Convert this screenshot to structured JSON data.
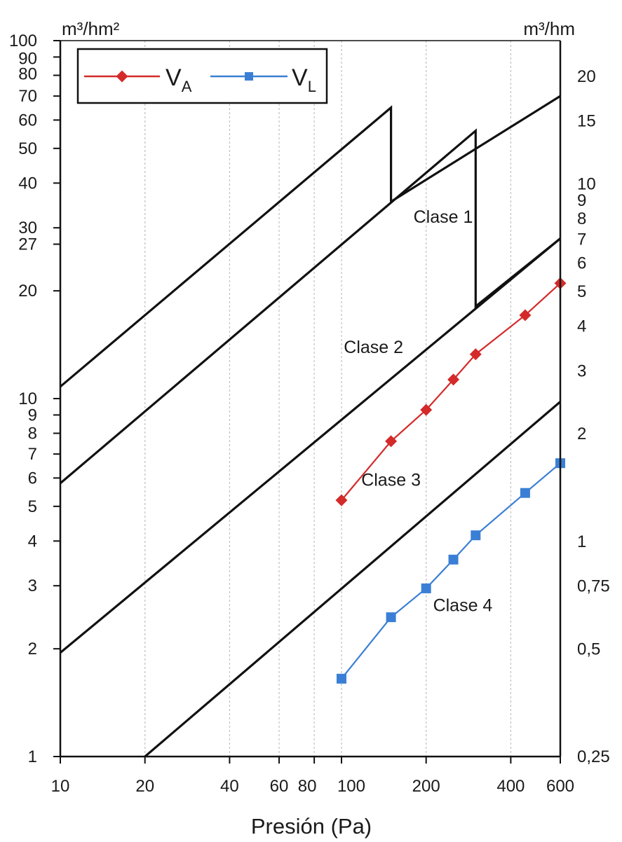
{
  "chart_data": {
    "type": "line",
    "xlabel": "Presión (Pa)",
    "x_scale": "log",
    "xlim": [
      10,
      600
    ],
    "y_left_unit": "m³/hm²",
    "y_left_scale": "log",
    "ylim_left": [
      1,
      100
    ],
    "y_right_unit": "m³/hm",
    "grid": "vertical",
    "x_ticks": [
      {
        "v": 10,
        "l": "10"
      },
      {
        "v": 20,
        "l": "20"
      },
      {
        "v": 40,
        "l": "40"
      },
      {
        "v": 60,
        "l": "60"
      },
      {
        "v": 80,
        "l": "80"
      },
      {
        "v": 100,
        "l": "100"
      },
      {
        "v": 200,
        "l": "200"
      },
      {
        "v": 400,
        "l": "400"
      },
      {
        "v": 600,
        "l": "600"
      }
    ],
    "y_left_ticks": [
      {
        "v": 1,
        "l": "1"
      },
      {
        "v": 2,
        "l": "2"
      },
      {
        "v": 3,
        "l": "3"
      },
      {
        "v": 4,
        "l": "4"
      },
      {
        "v": 5,
        "l": "5"
      },
      {
        "v": 6,
        "l": "6"
      },
      {
        "v": 7,
        "l": "7"
      },
      {
        "v": 8,
        "l": "8"
      },
      {
        "v": 9,
        "l": "9"
      },
      {
        "v": 10,
        "l": "10"
      },
      {
        "v": 20,
        "l": "20"
      },
      {
        "v": 27,
        "l": "27"
      },
      {
        "v": 30,
        "l": "30"
      },
      {
        "v": 40,
        "l": "40"
      },
      {
        "v": 50,
        "l": "50"
      },
      {
        "v": 60,
        "l": "60"
      },
      {
        "v": 70,
        "l": "70"
      },
      {
        "v": 80,
        "l": "80"
      },
      {
        "v": 90,
        "l": "90"
      },
      {
        "v": 100,
        "l": "100"
      }
    ],
    "y_right_ticks": [
      {
        "v": 0.25,
        "l": "0,25"
      },
      {
        "v": 0.5,
        "l": "0,5"
      },
      {
        "v": 0.75,
        "l": "0,75"
      },
      {
        "v": 1,
        "l": "1"
      },
      {
        "v": 2,
        "l": "2"
      },
      {
        "v": 3,
        "l": "3"
      },
      {
        "v": 4,
        "l": "4"
      },
      {
        "v": 5,
        "l": "5"
      },
      {
        "v": 6,
        "l": "6"
      },
      {
        "v": 7,
        "l": "7"
      },
      {
        "v": 8,
        "l": "8"
      },
      {
        "v": 9,
        "l": "9"
      },
      {
        "v": 10,
        "l": "10"
      },
      {
        "v": 15,
        "l": "15"
      },
      {
        "v": 20,
        "l": "20"
      }
    ],
    "class_boundaries": [
      {
        "points": [
          [
            10,
            10.8
          ],
          [
            150,
            65.0
          ],
          [
            150,
            35.5
          ],
          [
            600,
            70.0
          ]
        ]
      },
      {
        "points": [
          [
            10,
            5.8
          ],
          [
            300,
            56.0
          ],
          [
            300,
            18.1
          ],
          [
            600,
            28.0
          ]
        ]
      },
      {
        "points": [
          [
            10,
            1.95
          ],
          [
            600,
            28.0
          ]
        ]
      },
      {
        "points": [
          [
            20,
            1.0
          ],
          [
            600,
            9.8
          ]
        ]
      }
    ],
    "class_labels": [
      {
        "text": "Clase 1",
        "x": 230,
        "y": 31
      },
      {
        "text": "Clase 2",
        "x": 130,
        "y": 13.4
      },
      {
        "text": "Clase 3",
        "x": 150,
        "y": 5.7
      },
      {
        "text": "Clase 4",
        "x": 270,
        "y": 2.55
      }
    ],
    "series": [
      {
        "name": "VA",
        "color": "#d42a2a",
        "marker": "diamond",
        "x": [
          100,
          150,
          200,
          250,
          300,
          450,
          600
        ],
        "y": [
          5.2,
          7.6,
          9.3,
          11.3,
          13.3,
          17.1,
          21.0
        ]
      },
      {
        "name": "VL",
        "color": "#3a7fd5",
        "marker": "square",
        "x": [
          100,
          150,
          200,
          250,
          300,
          450,
          600
        ],
        "y": [
          1.65,
          2.45,
          2.95,
          3.55,
          4.15,
          5.45,
          6.6
        ]
      }
    ],
    "legend": {
      "placement": "top-left",
      "entries": [
        {
          "main": "V",
          "sub": "A"
        },
        {
          "main": "V",
          "sub": "L"
        }
      ]
    }
  }
}
